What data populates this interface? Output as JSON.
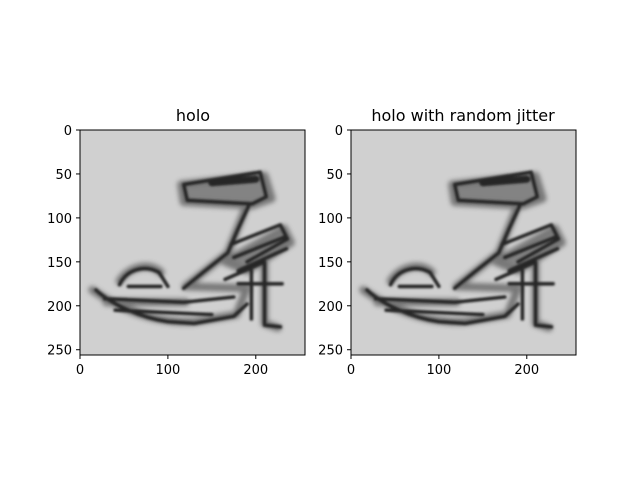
{
  "chart_data": [
    {
      "type": "heatmap",
      "title": "holo",
      "colormap": "gray",
      "background_color": "#d0d0d0",
      "subject": "grayscale image of a high-heeled sandal",
      "x_ticks": [
        0,
        100,
        200
      ],
      "y_ticks": [
        0,
        50,
        100,
        150,
        200,
        250
      ],
      "xlim": [
        0,
        255
      ],
      "ylim": [
        255,
        0
      ],
      "image_size": [
        256,
        256
      ]
    },
    {
      "type": "heatmap",
      "title": "holo with random jitter",
      "colormap": "gray",
      "background_color": "#d0d0d0",
      "subject": "grayscale image of a high-heeled sandal",
      "x_ticks": [
        0,
        100,
        200
      ],
      "y_ticks": [
        0,
        50,
        100,
        150,
        200,
        250
      ],
      "xlim": [
        0,
        255
      ],
      "ylim": [
        255,
        0
      ],
      "image_size": [
        256,
        256
      ]
    }
  ]
}
